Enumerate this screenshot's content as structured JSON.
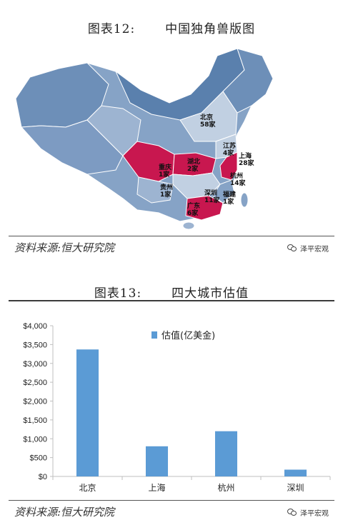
{
  "figure12": {
    "number": "图表12:",
    "title": "中国独角兽版图",
    "source": "资料来源:恒大研究院",
    "watermark": "泽平宏观",
    "watermark_icon": "wechat-icon",
    "colors": {
      "highlight": "#c8174f",
      "province_dark": "#5a80ad",
      "province_mid": "#86a3c6",
      "province_light": "#c1d0e2"
    },
    "labels": [
      {
        "id": "beijing",
        "city": "北京",
        "count": "58家"
      },
      {
        "id": "jiangsu",
        "city": "江苏",
        "count": "4家"
      },
      {
        "id": "shanghai",
        "city": "上海",
        "count": "28家"
      },
      {
        "id": "hubei",
        "city": "湖北",
        "count": "2家"
      },
      {
        "id": "chongqing",
        "city": "重庆",
        "count": "1家"
      },
      {
        "id": "hangzhou",
        "city": "杭州",
        "count": "14家"
      },
      {
        "id": "guizhou",
        "city": "贵州",
        "count": "1家"
      },
      {
        "id": "shenzhen",
        "city": "深圳",
        "count": "11家"
      },
      {
        "id": "fujian",
        "city": "福建",
        "count": "1家"
      },
      {
        "id": "guangdong",
        "city": "广东",
        "count": "6家"
      }
    ]
  },
  "figure13": {
    "number": "图表13:",
    "title": "四大城市估值",
    "source": "资料来源:恒大研究院",
    "watermark": "泽平宏观",
    "watermark_icon": "wechat-icon",
    "colors": {
      "bar": "#5b9bd5",
      "axis": "#bfbfbf"
    }
  },
  "chart_data": {
    "type": "bar",
    "categories": [
      "北京",
      "上海",
      "杭州",
      "深圳"
    ],
    "series": [
      {
        "name": "估值(亿美金)",
        "values": [
          3370,
          800,
          1200,
          180
        ]
      }
    ],
    "ylim": [
      0,
      4000
    ],
    "yticks": [
      "$0",
      "$500",
      "$1,000",
      "$1,500",
      "$2,000",
      "$2,500",
      "$3,000",
      "$3,500",
      "$4,000"
    ],
    "legend_position": "top",
    "grid": false
  }
}
